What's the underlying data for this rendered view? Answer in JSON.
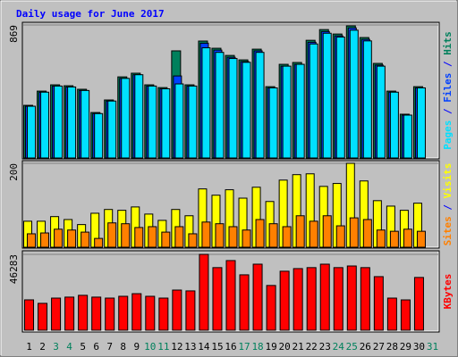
{
  "title": "Daily usage for June 2017",
  "legend_separator": " / ",
  "chart_data": [
    {
      "type": "bar",
      "series": [
        {
          "name": "Hits",
          "color": "#00805c",
          "values": [
            344,
            437,
            478,
            472,
            449,
            297,
            379,
            530,
            554,
            478,
            460,
            700,
            478,
            764,
            717,
            670,
            641,
            711,
            466,
            612,
            624,
            769,
            839,
            810,
            863,
            787,
            618,
            437,
            286,
            466,
            null
          ]
        },
        {
          "name": "Files",
          "color": "#0040ff",
          "values": [
            338,
            430,
            470,
            464,
            441,
            290,
            372,
            520,
            544,
            470,
            452,
            536,
            470,
            750,
            705,
            658,
            630,
            700,
            458,
            600,
            612,
            756,
            826,
            798,
            850,
            775,
            607,
            430,
            280,
            458,
            null
          ]
        },
        {
          "name": "Pages",
          "color": "#00e0ff",
          "values": [
            338,
            430,
            470,
            464,
            441,
            290,
            372,
            520,
            544,
            470,
            452,
            484,
            470,
            720,
            690,
            650,
            625,
            690,
            458,
            600,
            612,
            745,
            815,
            790,
            835,
            765,
            600,
            430,
            280,
            458,
            null
          ]
        }
      ],
      "ylim": [
        0,
        869
      ],
      "yticks": [
        869
      ]
    },
    {
      "type": "bar",
      "series": [
        {
          "name": "Visits",
          "color": "#ffff00",
          "values": [
            62,
            62,
            73,
            66,
            54,
            81,
            90,
            88,
            96,
            79,
            64,
            90,
            75,
            139,
            124,
            137,
            117,
            143,
            109,
            160,
            173,
            175,
            145,
            152,
            200,
            158,
            111,
            98,
            88,
            105,
            null
          ]
        },
        {
          "name": "Sites",
          "color": "#ff8000",
          "values": [
            32,
            34,
            43,
            41,
            36,
            21,
            58,
            56,
            47,
            49,
            36,
            49,
            32,
            60,
            56,
            49,
            41,
            66,
            56,
            49,
            75,
            62,
            75,
            51,
            70,
            66,
            41,
            38,
            43,
            38,
            null
          ]
        }
      ],
      "ylim": [
        0,
        200
      ],
      "yticks": [
        200
      ]
    },
    {
      "type": "bar",
      "categories": [
        "1",
        "2",
        "3",
        "4",
        "5",
        "6",
        "7",
        "8",
        "9",
        "10",
        "11",
        "12",
        "13",
        "14",
        "15",
        "16",
        "17",
        "18",
        "19",
        "20",
        "21",
        "22",
        "23",
        "24",
        "25",
        "26",
        "27",
        "28",
        "29",
        "30",
        "31"
      ],
      "category_colors": [
        "#000000",
        "#000000",
        "#00805c",
        "#00805c",
        "#000000",
        "#000000",
        "#000000",
        "#000000",
        "#000000",
        "#00805c",
        "#00805c",
        "#000000",
        "#000000",
        "#000000",
        "#000000",
        "#000000",
        "#00805c",
        "#00805c",
        "#000000",
        "#000000",
        "#000000",
        "#000000",
        "#000000",
        "#00805c",
        "#00805c",
        "#000000",
        "#000000",
        "#000000",
        "#000000",
        "#000000",
        "#00805c"
      ],
      "series": [
        {
          "name": "KBytes",
          "color": "#ff0000",
          "values": [
            18530,
            16400,
            19600,
            20200,
            21300,
            20200,
            19600,
            20700,
            22300,
            20700,
            19600,
            24500,
            24000,
            46283,
            38200,
            42500,
            33800,
            40300,
            27300,
            36000,
            37600,
            38200,
            40300,
            38200,
            39200,
            38200,
            32700,
            19600,
            18500,
            32200,
            null
          ]
        }
      ],
      "ylim": [
        0,
        46283
      ],
      "yticks": [
        46283
      ]
    }
  ]
}
